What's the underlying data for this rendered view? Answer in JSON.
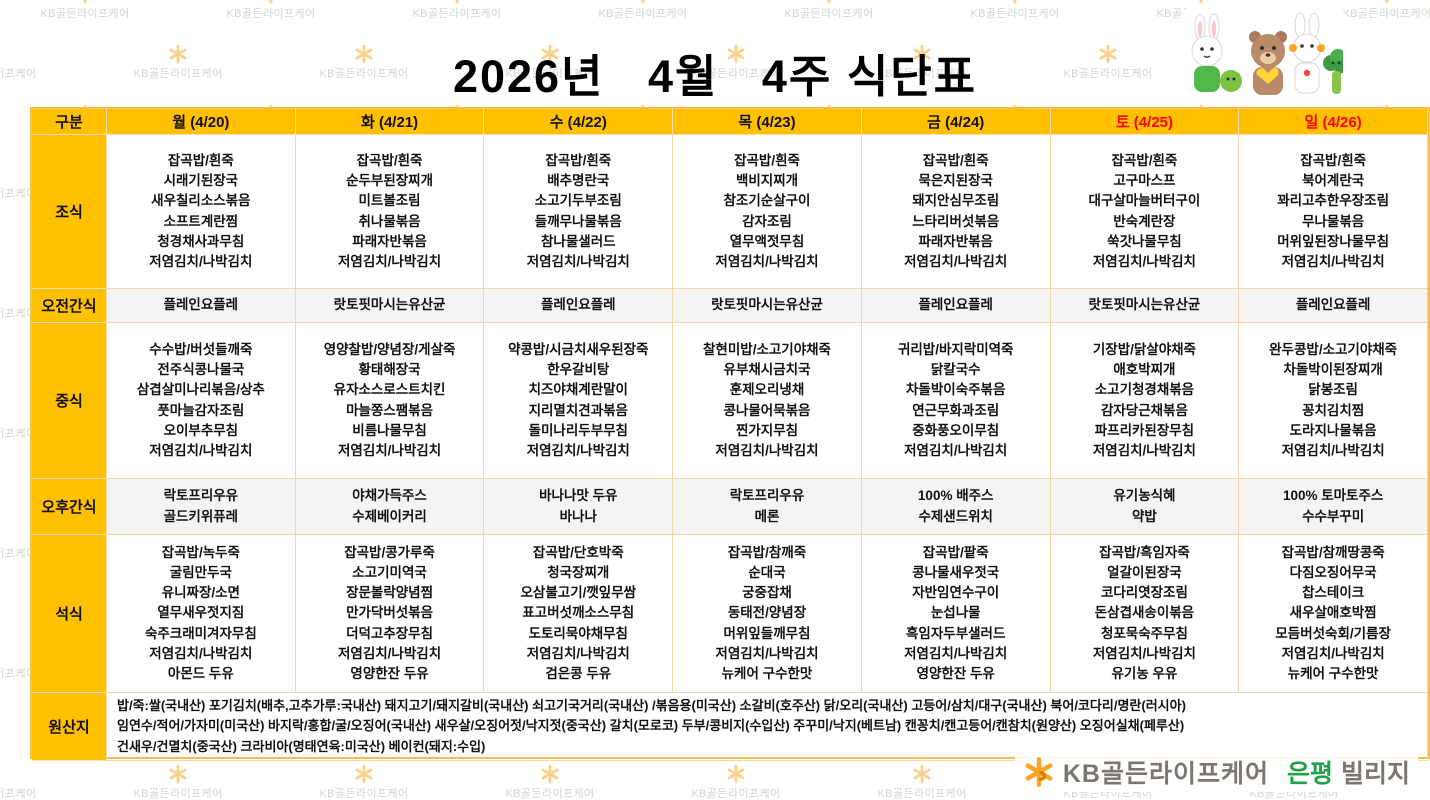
{
  "title": "2026년   4월   4주 식단표",
  "colors": {
    "header_bg": "#FFC000",
    "weekend_red": "#FF0000",
    "cell_border": "#F3D7A4",
    "snack_bg": "#F4F4F4",
    "brand_orange": "#F6A623",
    "brand_green": "#1FA24B",
    "brand_gray": "#7B7670"
  },
  "header": {
    "corner": "구분",
    "days": [
      {
        "label": "월 (4/20)",
        "red": false
      },
      {
        "label": "화 (4/21)",
        "red": false
      },
      {
        "label": "수 (4/22)",
        "red": false
      },
      {
        "label": "목 (4/23)",
        "red": false
      },
      {
        "label": "금 (4/24)",
        "red": false
      },
      {
        "label": "토 (4/25)",
        "red": true
      },
      {
        "label": "일 (4/26)",
        "red": true
      }
    ]
  },
  "rows": [
    {
      "label": "조식",
      "type": "menu",
      "snack": false,
      "cells": [
        [
          "잡곡밥/흰죽",
          "시래기된장국",
          "새우칠리소스볶음",
          "소프트계란찜",
          "청경채사과무침",
          "저염김치/나박김치"
        ],
        [
          "잡곡밥/흰죽",
          "순두부된장찌개",
          "미트볼조림",
          "취나물볶음",
          "파래자반볶음",
          "저염김치/나박김치"
        ],
        [
          "잡곡밥/흰죽",
          "배추명란국",
          "소고기두부조림",
          "들깨무나물볶음",
          "참나물샐러드",
          "저염김치/나박김치"
        ],
        [
          "잡곡밥/흰죽",
          "백비지찌개",
          "참조기순살구이",
          "감자조림",
          "열무액젓무침",
          "저염김치/나박김치"
        ],
        [
          "잡곡밥/흰죽",
          "묵은지된장국",
          "돼지안심무조림",
          "느타리버섯볶음",
          "파래자반볶음",
          "저염김치/나박김치"
        ],
        [
          "잡곡밥/흰죽",
          "고구마스프",
          "대구살마늘버터구이",
          "반숙계란장",
          "쑥갓나물무침",
          "저염김치/나박김치"
        ],
        [
          "잡곡밥/흰죽",
          "북어계란국",
          "꽈리고추한우장조림",
          "무나물볶음",
          "머위잎된장나물무침",
          "저염김치/나박김치"
        ]
      ]
    },
    {
      "label": "오전간식",
      "type": "menu",
      "snack": true,
      "cells": [
        [
          "플레인요플레"
        ],
        [
          "랏토핏마시는유산균"
        ],
        [
          "플레인요플레"
        ],
        [
          "랏토핏마시는유산균"
        ],
        [
          "플레인요플레"
        ],
        [
          "랏토핏마시는유산균"
        ],
        [
          "플레인요플레"
        ]
      ]
    },
    {
      "label": "중식",
      "type": "menu",
      "snack": false,
      "cells": [
        [
          "수수밥/버섯들깨죽",
          "전주식콩나물국",
          "삼겹살미나리볶음/상추",
          "풋마늘감자조림",
          "오이부추무침",
          "저염김치/나박김치"
        ],
        [
          "영양찰밥/양념장/게살죽",
          "황태해장국",
          "유자소스로스트치킨",
          "마늘쫑스팸볶음",
          "비름나물무침",
          "저염김치/나박김치"
        ],
        [
          "약콩밥/시금치새우된장죽",
          "한우갈비탕",
          "치즈야채계란말이",
          "지리멸치견과볶음",
          "돌미나리두부무침",
          "저염김치/나박김치"
        ],
        [
          "찰현미밥/소고기야채죽",
          "유부채시금치국",
          "훈제오리냉채",
          "콩나물어묵볶음",
          "찐가지무침",
          "저염김치/나박김치"
        ],
        [
          "귀리밥/바지락미역죽",
          "닭칼국수",
          "차돌박이숙주볶음",
          "연근무화과조림",
          "중화풍오이무침",
          "저염김치/나박김치"
        ],
        [
          "기장밥/닭살야채죽",
          "애호박찌개",
          "소고기청경채볶음",
          "감자당근채볶음",
          "파프리카된장무침",
          "저염김치/나박김치"
        ],
        [
          "완두콩밥/소고기야채죽",
          "차돌박이된장찌개",
          "닭봉조림",
          "꽁치김치찜",
          "도라지나물볶음",
          "저염김치/나박김치"
        ]
      ]
    },
    {
      "label": "오후간식",
      "type": "menu",
      "snack": true,
      "cells": [
        [
          "락토프리우유",
          "골드키위퓨레"
        ],
        [
          "야채가득주스",
          "수제베이커리"
        ],
        [
          "바나나맛 두유",
          "바나나"
        ],
        [
          "락토프리우유",
          "메론"
        ],
        [
          "100% 배주스",
          "수제샌드위치"
        ],
        [
          "유기농식혜",
          "약밥"
        ],
        [
          "100% 토마토주스",
          "수수부꾸미"
        ]
      ]
    },
    {
      "label": "석식",
      "type": "menu",
      "snack": false,
      "cells": [
        [
          "잡곡밥/녹두죽",
          "굴림만두국",
          "유니짜장/소면",
          "열무새우젓지짐",
          "숙주크래미겨자무침",
          "저염김치/나박김치",
          "아몬드 두유"
        ],
        [
          "잡곡밥/콩가루죽",
          "소고기미역국",
          "장문볼락양념찜",
          "만가닥버섯볶음",
          "더덕고추장무침",
          "저염김치/나박김치",
          "영양한잔 두유"
        ],
        [
          "잡곡밥/단호박죽",
          "청국장찌개",
          "오삼불고기/깻잎무쌈",
          "표고버섯깨소스무침",
          "도토리묵야채무침",
          "저염김치/나박김치",
          "검은콩 두유"
        ],
        [
          "잡곡밥/참깨죽",
          "순대국",
          "궁중잡채",
          "동태전/양념장",
          "머위잎들깨무침",
          "저염김치/나박김치",
          "뉴케어 구수한맛"
        ],
        [
          "잡곡밥/팥죽",
          "콩나물새우젓국",
          "자반임연수구이",
          "눈섭나물",
          "흑임자두부샐러드",
          "저염김치/나박김치",
          "영양한잔 두유"
        ],
        [
          "잡곡밥/흑임자죽",
          "얼갈이된장국",
          "코다리엿장조림",
          "돈삼겹새송이볶음",
          "청포묵숙주무침",
          "저염김치/나박김치",
          "유기농 우유"
        ],
        [
          "잡곡밥/참깨땅콩죽",
          "다짐오징어무국",
          "찹스테이크",
          "새우살애호박찜",
          "모듬버섯숙회/기름장",
          "저염김치/나박김치",
          "뉴케어 구수한맛"
        ]
      ]
    },
    {
      "label": "원산지",
      "type": "origin",
      "lines": [
        "밥/죽:쌀(국내산)  포기김치(배추,고추가루:국내산)  돼지고기/돼지갈비(국내산)  쇠고기국거리(국내산) /볶음용(미국산)  소갈비(호주산)  닭/오리(국내산)  고등어/삼치/대구(국내산)  북어/코다리/명란(러시아)",
        "임연수/적어/가자미(미국산)  바지락/홍합/굴/오징어(국내산)  새우살/오징어젓/낙지젓(중국산)  갈치(모로코)  두부/콩비지(수입산)  주꾸미/낙지(베트남)  캔꽁치/캔고등어/캔참치(원양산)  오징어실채(페루산)",
        "건새우/건멸치(중국산)  크라비아(명태연육:미국산)  베이컨(돼지:수입)"
      ]
    }
  ],
  "footer": {
    "brand": "KB골든라이프케어",
    "branch": "은평",
    "suffix": "빌리지"
  },
  "watermark": {
    "brand": "KB골든라이프케어"
  }
}
